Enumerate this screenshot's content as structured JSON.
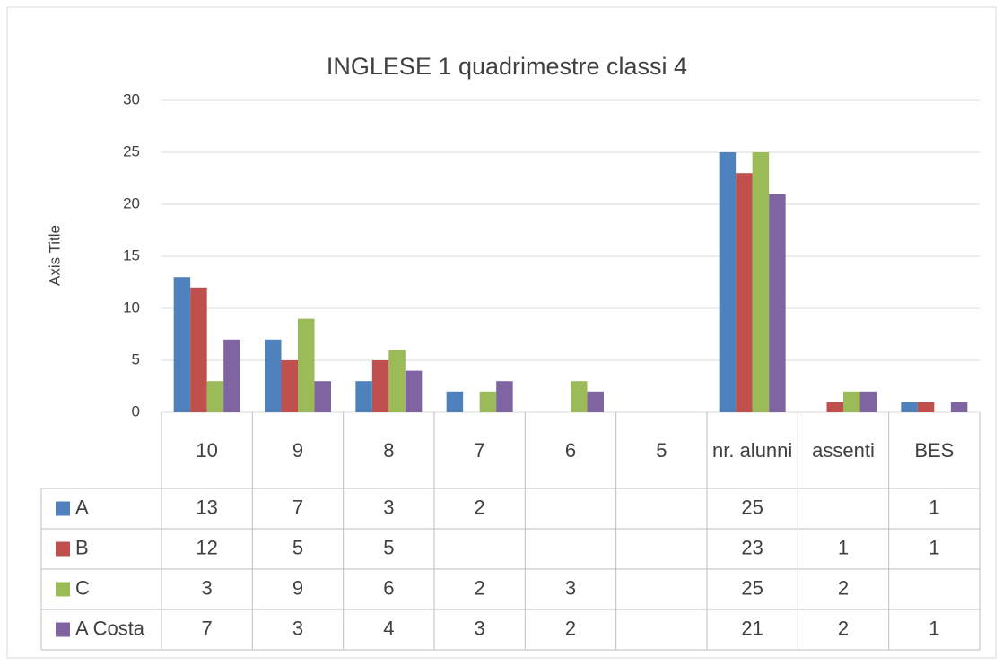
{
  "chart_data": {
    "type": "bar",
    "title": "INGLESE 1 quadrimestre classi 4",
    "y_label": "Axis Title",
    "categories": [
      "10",
      "9",
      "8",
      "7",
      "6",
      "5",
      "nr. alunni",
      "assenti",
      "BES"
    ],
    "series": [
      {
        "name": "A",
        "color": "#4f81bd",
        "values": [
          13,
          7,
          3,
          2,
          null,
          null,
          25,
          null,
          1
        ]
      },
      {
        "name": "B",
        "color": "#c0504d",
        "values": [
          12,
          5,
          5,
          null,
          null,
          null,
          23,
          1,
          1
        ]
      },
      {
        "name": "C",
        "color": "#9bbb59",
        "values": [
          3,
          9,
          6,
          2,
          3,
          null,
          25,
          2,
          null
        ]
      },
      {
        "name": "A Costa",
        "color": "#8064a2",
        "values": [
          7,
          3,
          4,
          3,
          2,
          null,
          21,
          2,
          1
        ]
      }
    ],
    "ylim": [
      0,
      30
    ],
    "yticks": [
      0,
      5,
      10,
      15,
      20,
      25,
      30
    ],
    "grid": true,
    "data_table": true
  }
}
